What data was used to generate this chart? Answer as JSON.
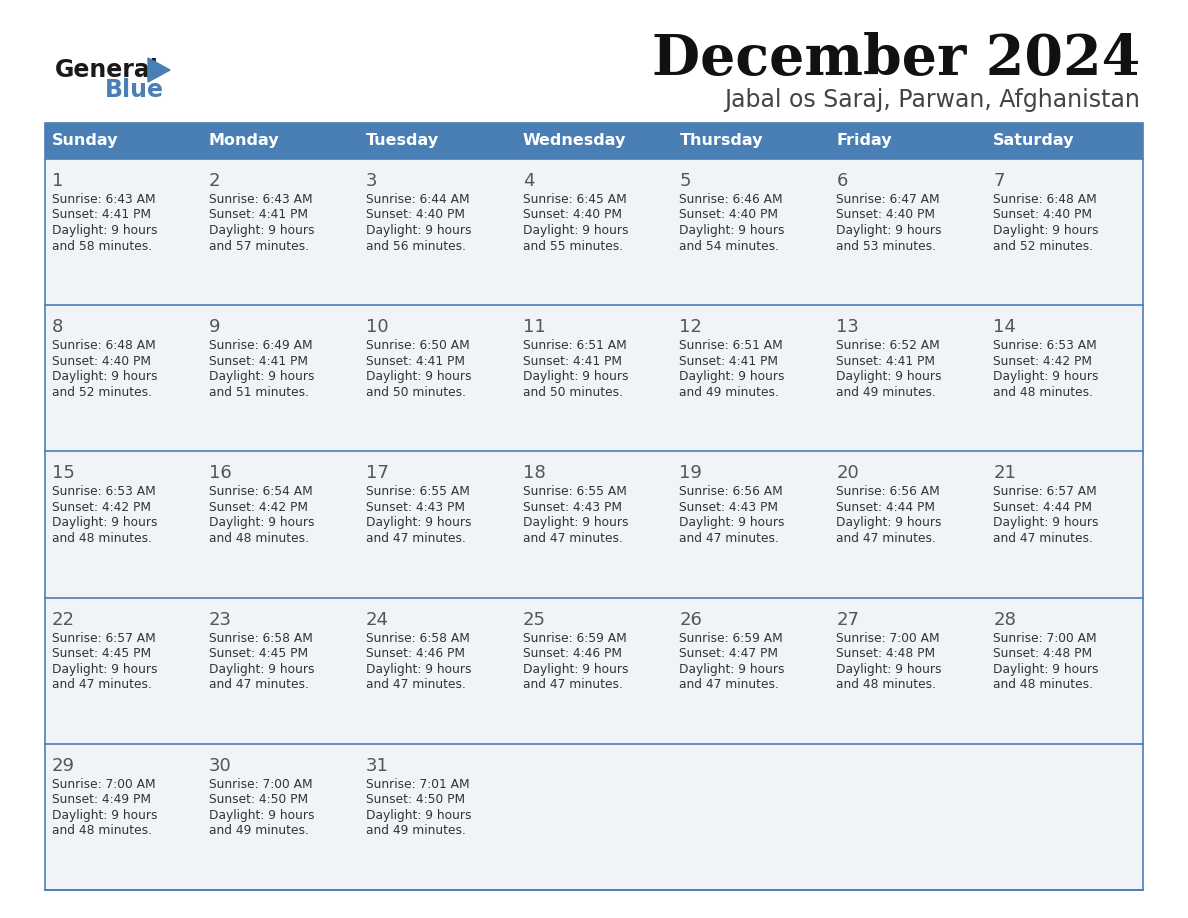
{
  "title": "December 2024",
  "subtitle": "Jabal os Saraj, Parwan, Afghanistan",
  "header_color": "#4a7fb5",
  "header_text_color": "#ffffff",
  "cell_bg_odd": "#f0f4f8",
  "cell_bg_even": "#ffffff",
  "text_color": "#333333",
  "border_color": "#4a7fb5",
  "days_of_week": [
    "Sunday",
    "Monday",
    "Tuesday",
    "Wednesday",
    "Thursday",
    "Friday",
    "Saturday"
  ],
  "calendar_data": [
    [
      {
        "day": 1,
        "sunrise": "6:43 AM",
        "sunset": "4:41 PM",
        "daylight_h": "9 hours",
        "daylight_m": "58 minutes"
      },
      {
        "day": 2,
        "sunrise": "6:43 AM",
        "sunset": "4:41 PM",
        "daylight_h": "9 hours",
        "daylight_m": "57 minutes"
      },
      {
        "day": 3,
        "sunrise": "6:44 AM",
        "sunset": "4:40 PM",
        "daylight_h": "9 hours",
        "daylight_m": "56 minutes"
      },
      {
        "day": 4,
        "sunrise": "6:45 AM",
        "sunset": "4:40 PM",
        "daylight_h": "9 hours",
        "daylight_m": "55 minutes"
      },
      {
        "day": 5,
        "sunrise": "6:46 AM",
        "sunset": "4:40 PM",
        "daylight_h": "9 hours",
        "daylight_m": "54 minutes"
      },
      {
        "day": 6,
        "sunrise": "6:47 AM",
        "sunset": "4:40 PM",
        "daylight_h": "9 hours",
        "daylight_m": "53 minutes"
      },
      {
        "day": 7,
        "sunrise": "6:48 AM",
        "sunset": "4:40 PM",
        "daylight_h": "9 hours",
        "daylight_m": "52 minutes"
      }
    ],
    [
      {
        "day": 8,
        "sunrise": "6:48 AM",
        "sunset": "4:40 PM",
        "daylight_h": "9 hours",
        "daylight_m": "52 minutes"
      },
      {
        "day": 9,
        "sunrise": "6:49 AM",
        "sunset": "4:41 PM",
        "daylight_h": "9 hours",
        "daylight_m": "51 minutes"
      },
      {
        "day": 10,
        "sunrise": "6:50 AM",
        "sunset": "4:41 PM",
        "daylight_h": "9 hours",
        "daylight_m": "50 minutes"
      },
      {
        "day": 11,
        "sunrise": "6:51 AM",
        "sunset": "4:41 PM",
        "daylight_h": "9 hours",
        "daylight_m": "50 minutes"
      },
      {
        "day": 12,
        "sunrise": "6:51 AM",
        "sunset": "4:41 PM",
        "daylight_h": "9 hours",
        "daylight_m": "49 minutes"
      },
      {
        "day": 13,
        "sunrise": "6:52 AM",
        "sunset": "4:41 PM",
        "daylight_h": "9 hours",
        "daylight_m": "49 minutes"
      },
      {
        "day": 14,
        "sunrise": "6:53 AM",
        "sunset": "4:42 PM",
        "daylight_h": "9 hours",
        "daylight_m": "48 minutes"
      }
    ],
    [
      {
        "day": 15,
        "sunrise": "6:53 AM",
        "sunset": "4:42 PM",
        "daylight_h": "9 hours",
        "daylight_m": "48 minutes"
      },
      {
        "day": 16,
        "sunrise": "6:54 AM",
        "sunset": "4:42 PM",
        "daylight_h": "9 hours",
        "daylight_m": "48 minutes"
      },
      {
        "day": 17,
        "sunrise": "6:55 AM",
        "sunset": "4:43 PM",
        "daylight_h": "9 hours",
        "daylight_m": "47 minutes"
      },
      {
        "day": 18,
        "sunrise": "6:55 AM",
        "sunset": "4:43 PM",
        "daylight_h": "9 hours",
        "daylight_m": "47 minutes"
      },
      {
        "day": 19,
        "sunrise": "6:56 AM",
        "sunset": "4:43 PM",
        "daylight_h": "9 hours",
        "daylight_m": "47 minutes"
      },
      {
        "day": 20,
        "sunrise": "6:56 AM",
        "sunset": "4:44 PM",
        "daylight_h": "9 hours",
        "daylight_m": "47 minutes"
      },
      {
        "day": 21,
        "sunrise": "6:57 AM",
        "sunset": "4:44 PM",
        "daylight_h": "9 hours",
        "daylight_m": "47 minutes"
      }
    ],
    [
      {
        "day": 22,
        "sunrise": "6:57 AM",
        "sunset": "4:45 PM",
        "daylight_h": "9 hours",
        "daylight_m": "47 minutes"
      },
      {
        "day": 23,
        "sunrise": "6:58 AM",
        "sunset": "4:45 PM",
        "daylight_h": "9 hours",
        "daylight_m": "47 minutes"
      },
      {
        "day": 24,
        "sunrise": "6:58 AM",
        "sunset": "4:46 PM",
        "daylight_h": "9 hours",
        "daylight_m": "47 minutes"
      },
      {
        "day": 25,
        "sunrise": "6:59 AM",
        "sunset": "4:46 PM",
        "daylight_h": "9 hours",
        "daylight_m": "47 minutes"
      },
      {
        "day": 26,
        "sunrise": "6:59 AM",
        "sunset": "4:47 PM",
        "daylight_h": "9 hours",
        "daylight_m": "47 minutes"
      },
      {
        "day": 27,
        "sunrise": "7:00 AM",
        "sunset": "4:48 PM",
        "daylight_h": "9 hours",
        "daylight_m": "48 minutes"
      },
      {
        "day": 28,
        "sunrise": "7:00 AM",
        "sunset": "4:48 PM",
        "daylight_h": "9 hours",
        "daylight_m": "48 minutes"
      }
    ],
    [
      {
        "day": 29,
        "sunrise": "7:00 AM",
        "sunset": "4:49 PM",
        "daylight_h": "9 hours",
        "daylight_m": "48 minutes"
      },
      {
        "day": 30,
        "sunrise": "7:00 AM",
        "sunset": "4:50 PM",
        "daylight_h": "9 hours",
        "daylight_m": "49 minutes"
      },
      {
        "day": 31,
        "sunrise": "7:01 AM",
        "sunset": "4:50 PM",
        "daylight_h": "9 hours",
        "daylight_m": "49 minutes"
      },
      null,
      null,
      null,
      null
    ]
  ]
}
